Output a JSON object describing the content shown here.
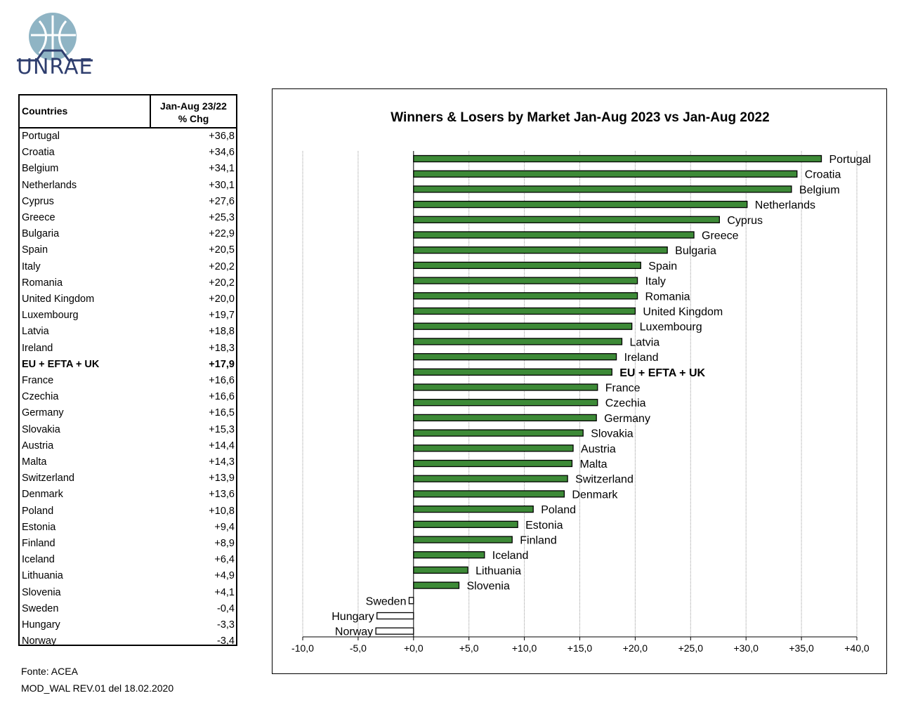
{
  "logo": {
    "text": "UNRAE",
    "icon": "globe-car-logo"
  },
  "table": {
    "header_country": "Countries",
    "header_change_line1": "Jan-Aug 23/22",
    "header_change_line2": "% Chg",
    "rows": [
      {
        "country": "Portugal",
        "value": "+36,8"
      },
      {
        "country": "Croatia",
        "value": "+34,6"
      },
      {
        "country": "Belgium",
        "value": "+34,1"
      },
      {
        "country": "Netherlands",
        "value": "+30,1"
      },
      {
        "country": "Cyprus",
        "value": "+27,6"
      },
      {
        "country": "Greece",
        "value": "+25,3"
      },
      {
        "country": "Bulgaria",
        "value": "+22,9"
      },
      {
        "country": "Spain",
        "value": "+20,5"
      },
      {
        "country": "Italy",
        "value": "+20,2"
      },
      {
        "country": "Romania",
        "value": "+20,2"
      },
      {
        "country": "United Kingdom",
        "value": "+20,0"
      },
      {
        "country": "Luxembourg",
        "value": "+19,7"
      },
      {
        "country": "Latvia",
        "value": "+18,8"
      },
      {
        "country": "Ireland",
        "value": "+18,3"
      },
      {
        "country": "EU + EFTA + UK",
        "value": "+17,9",
        "bold": true
      },
      {
        "country": "France",
        "value": "+16,6"
      },
      {
        "country": "Czechia",
        "value": "+16,6"
      },
      {
        "country": "Germany",
        "value": "+16,5"
      },
      {
        "country": "Slovakia",
        "value": "+15,3"
      },
      {
        "country": "Austria",
        "value": "+14,4"
      },
      {
        "country": "Malta",
        "value": "+14,3"
      },
      {
        "country": "Switzerland",
        "value": "+13,9"
      },
      {
        "country": "Denmark",
        "value": "+13,6"
      },
      {
        "country": "Poland",
        "value": "+10,8"
      },
      {
        "country": "Estonia",
        "value": "+9,4"
      },
      {
        "country": "Finland",
        "value": "+8,9"
      },
      {
        "country": "Iceland",
        "value": "+6,4"
      },
      {
        "country": "Lithuania",
        "value": "+4,9"
      },
      {
        "country": "Slovenia",
        "value": "+4,1"
      },
      {
        "country": "Sweden",
        "value": "-0,4"
      },
      {
        "country": "Hungary",
        "value": "-3,3"
      },
      {
        "country": "Norway",
        "value": "-3,4"
      }
    ]
  },
  "footer": {
    "source": "Fonte: ACEA",
    "doc_ref": "MOD_WAL REV.01 del 18.02.2020"
  },
  "colors": {
    "positive_bar": "#3d8a37",
    "negative_bar": "#ffffff",
    "bar_outline": "#000000",
    "grid": "#999999"
  },
  "chart_data": {
    "type": "bar",
    "orientation": "horizontal",
    "title": "Winners & Losers by Market  Jan-Aug 2023 vs Jan-Aug 2022",
    "xlim": [
      -10,
      40
    ],
    "xticks": [
      -10,
      -5,
      0,
      5,
      10,
      15,
      20,
      25,
      30,
      35,
      40
    ],
    "xtick_labels": [
      "-10,0",
      "-5,0",
      "+0,0",
      "+5,0",
      "+10,0",
      "+15,0",
      "+20,0",
      "+25,0",
      "+30,0",
      "+35,0",
      "+40,0"
    ],
    "grid": "vertical",
    "legend": "none",
    "categories": [
      "Portugal",
      "Croatia",
      "Belgium",
      "Netherlands",
      "Cyprus",
      "Greece",
      "Bulgaria",
      "Spain",
      "Italy",
      "Romania",
      "United Kingdom",
      "Luxembourg",
      "Latvia",
      "Ireland",
      "EU + EFTA + UK",
      "France",
      "Czechia",
      "Germany",
      "Slovakia",
      "Austria",
      "Malta",
      "Switzerland",
      "Denmark",
      "Poland",
      "Estonia",
      "Finland",
      "Iceland",
      "Lithuania",
      "Slovenia",
      "Sweden",
      "Hungary",
      "Norway"
    ],
    "values": [
      36.8,
      34.6,
      34.1,
      30.1,
      27.6,
      25.3,
      22.9,
      20.5,
      20.2,
      20.2,
      20.0,
      19.7,
      18.8,
      18.3,
      17.9,
      16.6,
      16.6,
      16.5,
      15.3,
      14.4,
      14.3,
      13.9,
      13.6,
      10.8,
      9.4,
      8.9,
      6.4,
      4.9,
      4.1,
      -0.4,
      -3.3,
      -3.4
    ],
    "bold_categories": [
      "EU + EFTA + UK"
    ]
  }
}
